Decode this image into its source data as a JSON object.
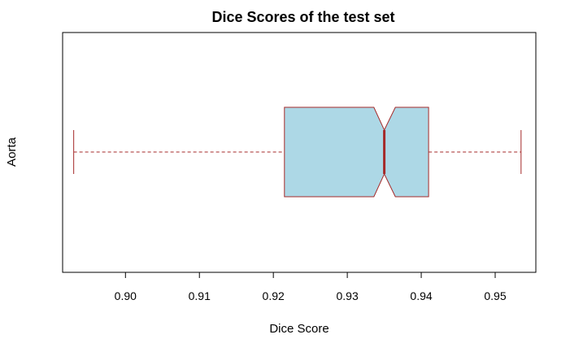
{
  "chart_data": {
    "type": "boxplot",
    "orientation": "horizontal",
    "title": "Dice Scores of the test set",
    "xlabel": "Dice Score",
    "ylabel": "Aorta",
    "xlim": [
      0.8915,
      0.9555
    ],
    "x_ticks": [
      0.9,
      0.91,
      0.92,
      0.93,
      0.94,
      0.95
    ],
    "x_tick_labels": [
      "0.90",
      "0.91",
      "0.92",
      "0.93",
      "0.94",
      "0.95"
    ],
    "notched": true,
    "series": [
      {
        "name": "Aorta",
        "whisker_low": 0.893,
        "q1": 0.9215,
        "notch_low": 0.9336,
        "median": 0.935,
        "notch_high": 0.9365,
        "q3": 0.941,
        "whisker_high": 0.9535
      }
    ],
    "box_fill": "#add8e6",
    "line_color": "#a52a2a",
    "grid": false,
    "legend": "none"
  }
}
